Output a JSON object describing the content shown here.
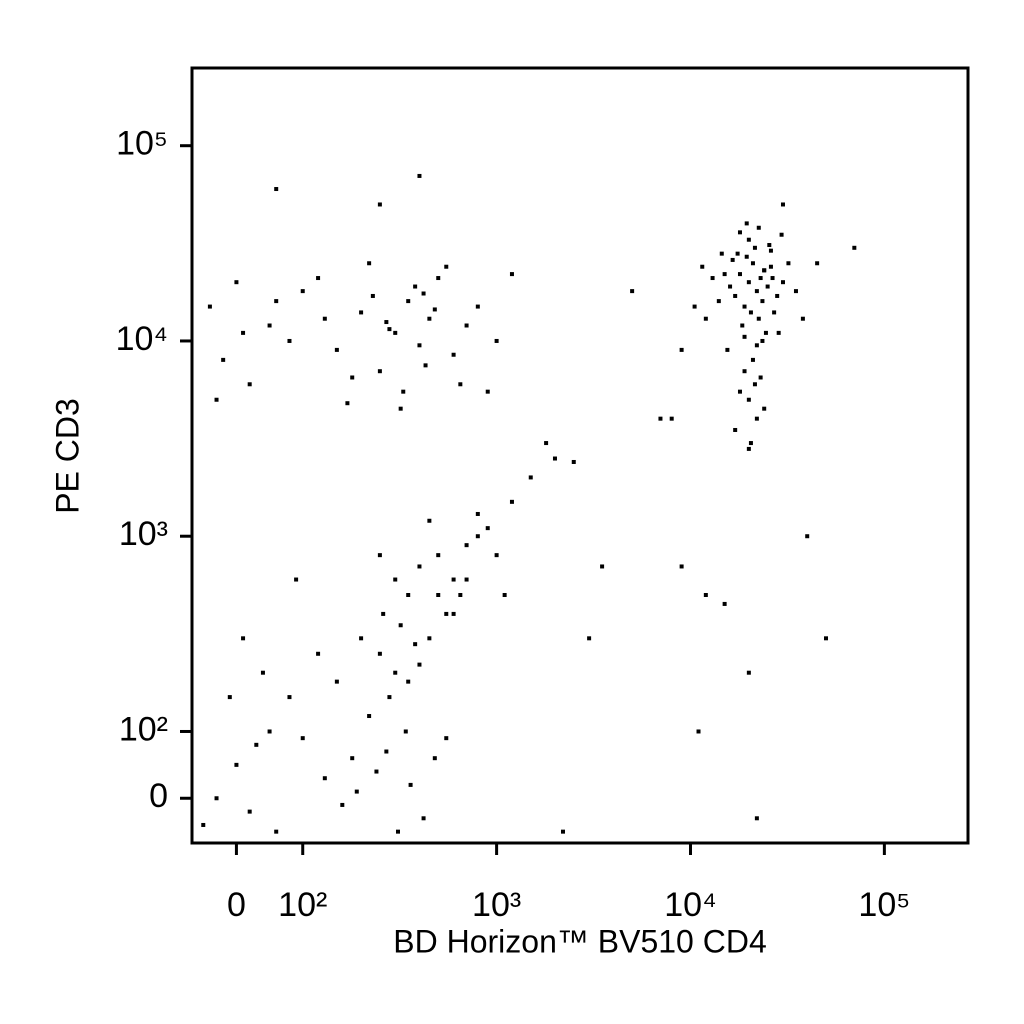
{
  "chart_data": {
    "type": "scatter",
    "xlabel": "BD Horizon™ BV510 CD4",
    "ylabel": "PE CD3",
    "color": "#000000",
    "xscale": {
      "type": "biexponential",
      "linthresh": 100,
      "linscale": 0.342
    },
    "yscale": {
      "type": "biexponential",
      "linthresh": 100,
      "linscale": 0.342
    },
    "xlim": [
      -67,
      270000
    ],
    "ylim": [
      -67,
      250000
    ],
    "xticks": [
      0,
      {
        "value": 100,
        "label": "10²"
      },
      {
        "value": 1000,
        "label": "10³"
      },
      {
        "value": 10000,
        "label": "10⁴"
      },
      {
        "value": 100000,
        "label": "10⁵"
      }
    ],
    "yticks": [
      0,
      {
        "value": 100,
        "label": "10²"
      },
      {
        "value": 1000,
        "label": "10³"
      },
      {
        "value": 10000,
        "label": "10⁴"
      },
      {
        "value": 100000,
        "label": "10⁵"
      }
    ],
    "x": [
      20000,
      22000,
      18000,
      25000,
      21000,
      19000,
      23000,
      17000,
      24000,
      20500,
      16000,
      26000,
      22500,
      19500,
      28000,
      15000,
      21500,
      18500,
      23500,
      30000,
      14000,
      24500,
      20000,
      27000,
      17500,
      22000,
      13000,
      26000,
      19000,
      32000,
      21000,
      18000,
      12000,
      25500,
      23000,
      16500,
      35000,
      20000,
      14500,
      28500,
      22000,
      19000,
      17000,
      21500,
      24000,
      10500,
      38000,
      20500,
      23500,
      11500,
      19500,
      22500,
      26500,
      15500,
      29500,
      20000,
      18000,
      24000,
      9000,
      45000,
      -40,
      -20,
      0,
      20,
      50,
      80,
      100,
      150,
      200,
      250,
      300,
      350,
      400,
      450,
      500,
      600,
      700,
      800,
      1000,
      1200,
      130,
      180,
      230,
      280,
      330,
      380,
      430,
      480,
      550,
      650,
      -30,
      10,
      60,
      120,
      170,
      220,
      270,
      320,
      420,
      900,
      300,
      250,
      350,
      200,
      400,
      280,
      320,
      220,
      380,
      260,
      150,
      450,
      100,
      500,
      180,
      600,
      120,
      700,
      80,
      340,
      50,
      0,
      -30,
      20,
      -50,
      40,
      10,
      60,
      -10,
      30,
      240,
      360,
      420,
      190,
      310,
      270,
      550,
      160,
      130,
      480,
      400,
      500,
      600,
      700,
      800,
      350,
      450,
      300,
      650,
      550,
      900,
      1000,
      1200,
      800,
      1500,
      2000,
      2500,
      1100,
      250,
      90,
      60,
      400,
      250,
      5000,
      9000,
      12000,
      20000,
      7000,
      3000,
      1800,
      15000,
      11000,
      30000,
      40000,
      50000,
      70000,
      3500,
      22000,
      2200,
      8000
    ],
    "y": [
      20000,
      18000,
      22000,
      19000,
      25000,
      15000,
      21000,
      17000,
      23000,
      14000,
      19000,
      24000,
      13000,
      27000,
      17000,
      22000,
      30000,
      12000,
      16000,
      20000,
      16000,
      11000,
      33000,
      14000,
      28000,
      9500,
      21000,
      29000,
      10500,
      25000,
      8000,
      36000,
      13000,
      31000,
      6500,
      26000,
      18000,
      5000,
      28000,
      11000,
      4000,
      7000,
      3500,
      6000,
      4500,
      15000,
      13000,
      3000,
      10000,
      24000,
      40000,
      38000,
      21000,
      9000,
      35000,
      2800,
      5500,
      23000,
      9000,
      25000,
      15000,
      8000,
      20000,
      6000,
      12000,
      10000,
      18000,
      9000,
      14000,
      7000,
      11000,
      16000,
      9500,
      13000,
      21000,
      8500,
      12000,
      15000,
      10000,
      22000,
      13000,
      6500,
      17000,
      11500,
      5500,
      19000,
      7500,
      14500,
      24000,
      6000,
      5000,
      11000,
      16000,
      21000,
      4800,
      25000,
      12500,
      4500,
      17500,
      5500,
      200,
      250,
      180,
      300,
      220,
      150,
      350,
      120,
      280,
      400,
      180,
      300,
      90,
      500,
      60,
      400,
      250,
      600,
      150,
      100,
      100,
      50,
      0,
      -20,
      -40,
      200,
      300,
      -50,
      150,
      80,
      40,
      20,
      -30,
      10,
      -50,
      70,
      90,
      -10,
      30,
      60,
      700,
      800,
      600,
      900,
      1000,
      500,
      1200,
      600,
      500,
      400,
      1100,
      800,
      1500,
      1300,
      2000,
      2500,
      2400,
      500,
      800,
      600,
      60000,
      70000,
      50000,
      18000,
      700,
      500,
      200,
      4000,
      300,
      3000,
      450,
      100,
      50000,
      1000,
      300,
      30000,
      700,
      -30,
      -50,
      4000
    ]
  }
}
